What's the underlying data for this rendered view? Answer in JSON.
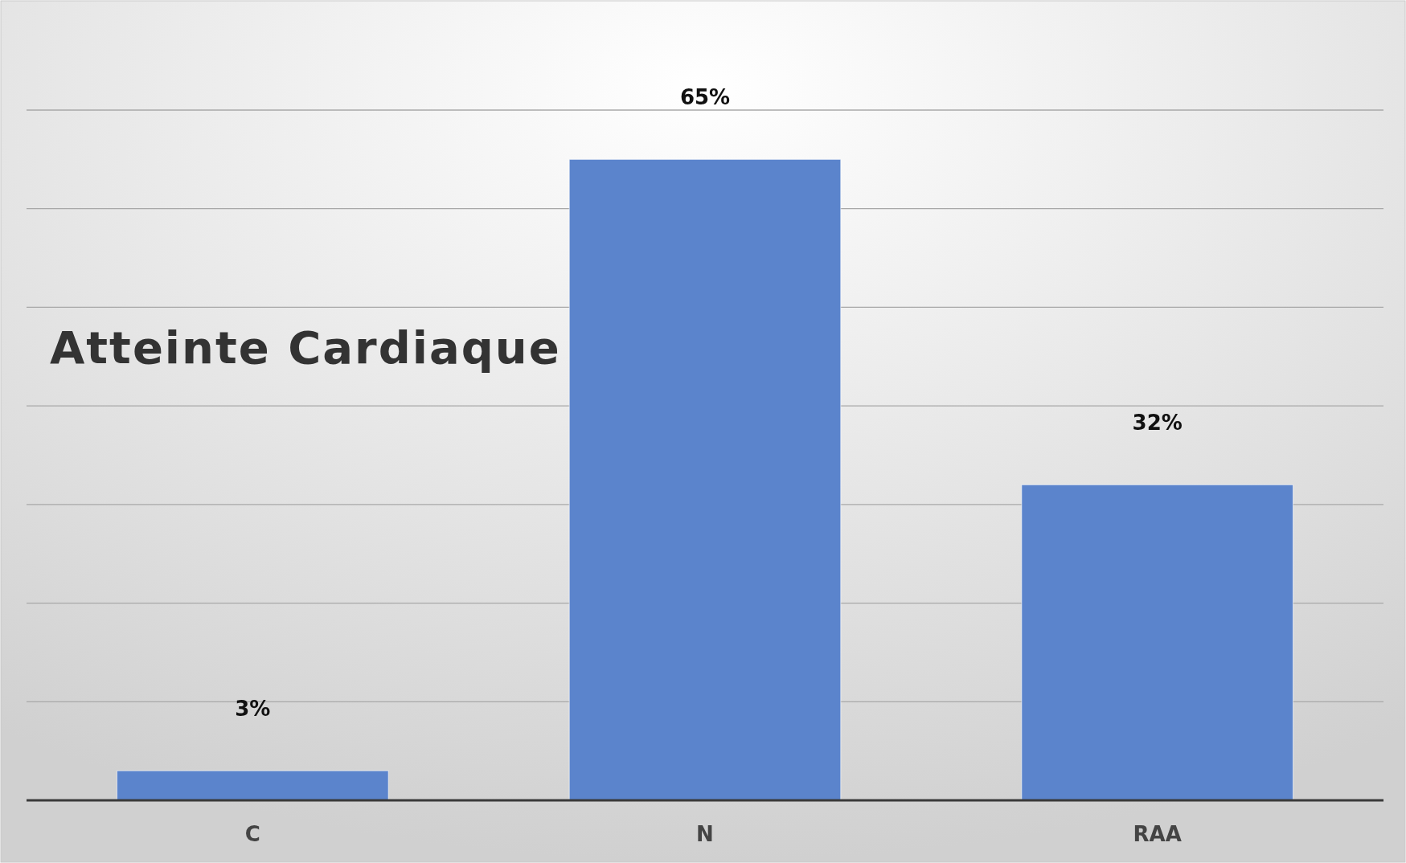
{
  "chart_data": {
    "type": "bar",
    "title": "Atteinte Cardiaque",
    "categories": [
      "C",
      "N",
      "RAA"
    ],
    "values": [
      3,
      65,
      32
    ],
    "value_labels": [
      "3%",
      "65%",
      "32%"
    ],
    "color": "#5b84cc",
    "ylim": [
      0,
      70
    ],
    "yticks": [
      {
        "value": 0,
        "label": null
      },
      {
        "value": 10,
        "label": null
      },
      {
        "value": 20,
        "label": null
      },
      {
        "value": 30,
        "label": null
      },
      {
        "value": 40,
        "label": null
      },
      {
        "value": 50,
        "label": null
      },
      {
        "value": 60,
        "label": null
      },
      {
        "value": 70,
        "label": null
      }
    ],
    "grid": true,
    "tick_labels": "x"
  }
}
